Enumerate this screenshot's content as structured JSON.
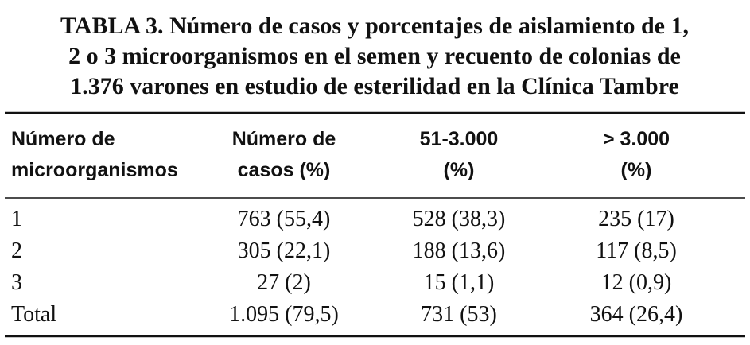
{
  "title": [
    "TABLA 3. Número de casos y porcentajes de aislamiento de 1,",
    "2 o 3 microorganismos en el semen y recuento de colonias de",
    "1.376 varones en estudio de esterilidad en la Clínica Tambre"
  ],
  "table": {
    "header": [
      [
        "Número de",
        "microorganismos"
      ],
      [
        "Número de",
        "casos (%)"
      ],
      [
        "51-3.000",
        "(%)"
      ],
      [
        "> 3.000",
        "(%)"
      ]
    ],
    "rows": [
      [
        "1",
        "763 (55,4)",
        "528 (38,3)",
        "235 (17)"
      ],
      [
        "2",
        "305 (22,1)",
        "188 (13,6)",
        "117 (8,5)"
      ],
      [
        "3",
        "27 (2)",
        "15 (1,1)",
        "12 (0,9)"
      ],
      [
        "Total",
        "1.095 (79,5)",
        "731 (53)",
        "364 (26,4)"
      ]
    ]
  }
}
